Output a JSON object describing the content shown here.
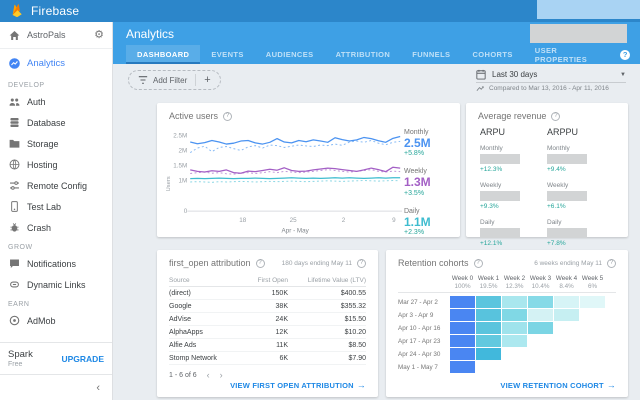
{
  "topbar": {
    "brand": "Firebase"
  },
  "sidebar": {
    "project": {
      "name": "AstroPals"
    },
    "analytics_label": "Analytics",
    "sections": [
      {
        "label": "DEVELOP",
        "items": [
          {
            "label": "Auth",
            "icon": "people-icon"
          },
          {
            "label": "Database",
            "icon": "database-icon"
          },
          {
            "label": "Storage",
            "icon": "folder-icon"
          },
          {
            "label": "Hosting",
            "icon": "globe-icon"
          },
          {
            "label": "Remote Config",
            "icon": "tune-icon"
          },
          {
            "label": "Test Lab",
            "icon": "testlab-icon"
          },
          {
            "label": "Crash",
            "icon": "bug-icon"
          }
        ]
      },
      {
        "label": "GROW",
        "items": [
          {
            "label": "Notifications",
            "icon": "chat-icon"
          },
          {
            "label": "Dynamic Links",
            "icon": "link-icon"
          }
        ]
      },
      {
        "label": "EARN",
        "items": [
          {
            "label": "AdMob",
            "icon": "admob-icon"
          }
        ]
      }
    ],
    "footer": {
      "plan": "Spark",
      "tier": "Free",
      "upgrade_label": "UPGRADE",
      "collapse_glyph": "‹"
    }
  },
  "header": {
    "title": "Analytics",
    "help_glyph": "?",
    "tabs": [
      {
        "label": "DASHBOARD",
        "active": true
      },
      {
        "label": "EVENTS",
        "active": false
      },
      {
        "label": "AUDIENCES",
        "active": false
      },
      {
        "label": "ATTRIBUTION",
        "active": false
      },
      {
        "label": "FUNNELS",
        "active": false
      },
      {
        "label": "COHORTS",
        "active": false
      },
      {
        "label": "USER PROPERTIES",
        "active": false
      }
    ]
  },
  "filterbar": {
    "add_filter_label": "Add Filter",
    "plus_glyph": "+",
    "date_range": "Last 30 days",
    "caret_glyph": "▼",
    "compare_text": "Compared to Mar 13, 2016 - Apr 11, 2016"
  },
  "cards": {
    "active_users": {
      "title": "Active users",
      "legend": [
        {
          "period": "Monthly",
          "value": "2.5M",
          "delta": "+5.8%",
          "color": "#4B93F1"
        },
        {
          "period": "Weekly",
          "value": "1.3M",
          "delta": "+3.5%",
          "color": "#A35FC5"
        },
        {
          "period": "Daily",
          "value": "1.1M",
          "delta": "+2.3%",
          "color": "#3EBCCF"
        }
      ]
    },
    "average_revenue": {
      "title": "Average revenue",
      "columns": [
        {
          "header": "ARPU",
          "metrics": [
            {
              "period": "Monthly",
              "delta": "+12.3%"
            },
            {
              "period": "Weekly",
              "delta": "+9.3%"
            },
            {
              "period": "Daily",
              "delta": "+12.1%"
            }
          ]
        },
        {
          "header": "ARPPU",
          "metrics": [
            {
              "period": "Monthly",
              "delta": "+9.4%"
            },
            {
              "period": "Weekly",
              "delta": "+6.1%"
            },
            {
              "period": "Daily",
              "delta": "+7.8%"
            }
          ]
        }
      ]
    },
    "attribution": {
      "title": "first_open attribution",
      "period_note": "180 days ending May 11",
      "columns": [
        "Source",
        "First Open",
        "Lifetime Value (LTV)"
      ],
      "rows": [
        [
          "(direct)",
          "150K",
          "$400.55"
        ],
        [
          "Google",
          "38K",
          "$355.32"
        ],
        [
          "AdVise",
          "24K",
          "$15.50"
        ],
        [
          "AlphaApps",
          "12K",
          "$10.20"
        ],
        [
          "Alfie Ads",
          "11K",
          "$8.50"
        ],
        [
          "Stomp Network",
          "6K",
          "$7.90"
        ]
      ],
      "pagination": "1 - 6 of 6",
      "prev_glyph": "‹",
      "next_glyph": "›",
      "link_label": "VIEW FIRST OPEN ATTRIBUTION",
      "arrow_glyph": "→"
    },
    "retention": {
      "title": "Retention cohorts",
      "period_note": "6 weeks ending May 11",
      "week_headers": [
        "Week 0",
        "Week 1",
        "Week 2",
        "Week 3",
        "Week 4",
        "Week 5"
      ],
      "week_percents": [
        "100%",
        "19.5%",
        "12.3%",
        "10.4%",
        "8.4%",
        "6%"
      ],
      "rows": [
        {
          "label": "Mar 27 - Apr 2",
          "cells": [
            "#4A86F2",
            "#5BC5DE",
            "#A9E7EE",
            "#86DAE7",
            "#D6F4F6",
            "#E0F7F8"
          ]
        },
        {
          "label": "Apr 3 - Apr 9",
          "cells": [
            "#4A86F2",
            "#58C3DD",
            "#80D8E5",
            "#D4F2F4",
            "#C6EFF2"
          ]
        },
        {
          "label": "Apr 10 - Apr 16",
          "cells": [
            "#4A86F2",
            "#5AC4DD",
            "#9FE3EC",
            "#7BD5E4"
          ]
        },
        {
          "label": "Apr 17 - Apr 23",
          "cells": [
            "#4A86F2",
            "#62C9DF",
            "#ACE8EF"
          ]
        },
        {
          "label": "Apr 24 - Apr 30",
          "cells": [
            "#4A86F2",
            "#41B8DC"
          ]
        },
        {
          "label": "May 1 - May 7",
          "cells": [
            "#4A86F2"
          ]
        }
      ],
      "link_label": "VIEW RETENTION COHORT",
      "arrow_glyph": "→"
    }
  },
  "chart_data": {
    "type": "line",
    "title": "Active users",
    "ylabel": "Users",
    "xlabel": "Apr - May",
    "ylim": [
      0,
      2.75
    ],
    "y_unit": "millions",
    "grid": false,
    "legend_position": "right",
    "y_ticks": [
      {
        "label": "0",
        "value": 0
      },
      {
        "label": "1M",
        "value": 1
      },
      {
        "label": "1.5M",
        "value": 1.5
      },
      {
        "label": "2M",
        "value": 2
      },
      {
        "label": "2.5M",
        "value": 2.5
      }
    ],
    "x_ticks": [
      {
        "label": "18",
        "pos": 0.25
      },
      {
        "label": "25",
        "pos": 0.49
      },
      {
        "label": "2",
        "pos": 0.73
      },
      {
        "label": "9",
        "pos": 0.97
      }
    ],
    "series": [
      {
        "name": "Monthly (previous period)",
        "color": "#85B9F5",
        "dash": true,
        "values": [
          1.93,
          2.08,
          2.14,
          1.96,
          2.1,
          2.13,
          2.06,
          2.0,
          2.12,
          2.16,
          2.08,
          2.18,
          2.16,
          2.1,
          2.14,
          2.18,
          2.15,
          2.13,
          2.18,
          2.16,
          2.21,
          2.17,
          2.28,
          2.31,
          2.27,
          2.33,
          2.24,
          2.19,
          2.27,
          2.3
        ]
      },
      {
        "name": "Monthly (current)",
        "color": "#4B93F1",
        "dash": false,
        "values": [
          2.28,
          2.22,
          2.26,
          2.33,
          2.28,
          2.21,
          2.24,
          2.31,
          2.33,
          2.25,
          2.21,
          2.27,
          2.39,
          2.28,
          2.25,
          2.33,
          2.29,
          2.35,
          2.31,
          2.27,
          2.42,
          2.36,
          2.31,
          2.35,
          2.43,
          2.39,
          2.32,
          2.27,
          2.4,
          2.46
        ]
      },
      {
        "name": "Weekly (previous period)",
        "color": "#BE93D6",
        "dash": true,
        "values": [
          1.24,
          1.27,
          1.29,
          1.25,
          1.27,
          1.23,
          1.22,
          1.25,
          1.27,
          1.24,
          1.27,
          1.3,
          1.27,
          1.31,
          1.29,
          1.27,
          1.29,
          1.31,
          1.34,
          1.37,
          1.34,
          1.31,
          1.29,
          1.31,
          1.34,
          1.37,
          1.31,
          1.29,
          1.32,
          1.3
        ]
      },
      {
        "name": "Weekly (current)",
        "color": "#A35FC5",
        "dash": false,
        "values": [
          1.36,
          1.31,
          1.29,
          1.33,
          1.31,
          1.36,
          1.27,
          1.25,
          1.32,
          1.3,
          1.34,
          1.38,
          1.35,
          1.43,
          1.34,
          1.31,
          1.32,
          1.36,
          1.39,
          1.42,
          1.4,
          1.37,
          1.34,
          1.31,
          1.36,
          1.42,
          1.37,
          1.3,
          1.45,
          1.42
        ]
      },
      {
        "name": "Daily (previous period)",
        "color": "#8AD6E4",
        "dash": true,
        "values": [
          0.96,
          0.97,
          0.96,
          0.95,
          0.97,
          0.96,
          0.97,
          0.98,
          0.97,
          0.96,
          0.97,
          0.98,
          0.97,
          0.98,
          0.99,
          0.98,
          0.97,
          0.98,
          0.99,
          1.0,
          0.99,
          0.98,
          0.99,
          1.0,
          1.01,
          1.0,
          0.99,
          1.0,
          1.01,
          1.0
        ]
      },
      {
        "name": "Daily (current)",
        "color": "#3EBCCF",
        "dash": false,
        "values": [
          1.07,
          1.08,
          1.07,
          1.08,
          1.09,
          1.08,
          1.07,
          1.08,
          1.08,
          1.09,
          1.08,
          1.07,
          1.08,
          1.09,
          1.1,
          1.09,
          1.08,
          1.09,
          1.08,
          1.09,
          1.1,
          1.09,
          1.1,
          1.09,
          1.08,
          1.09,
          1.1,
          1.09,
          1.1,
          1.1
        ]
      }
    ]
  },
  "colors": {
    "topbar_blue": "#2C86CA",
    "header_blue": "#3EA0E5",
    "accent_blue": "#4285F4",
    "link_blue": "#1E88E5",
    "delta_green": "#26A69A",
    "redaction_light_blue": "#A9D3F3",
    "redaction_gray": "#D2D4D5"
  }
}
